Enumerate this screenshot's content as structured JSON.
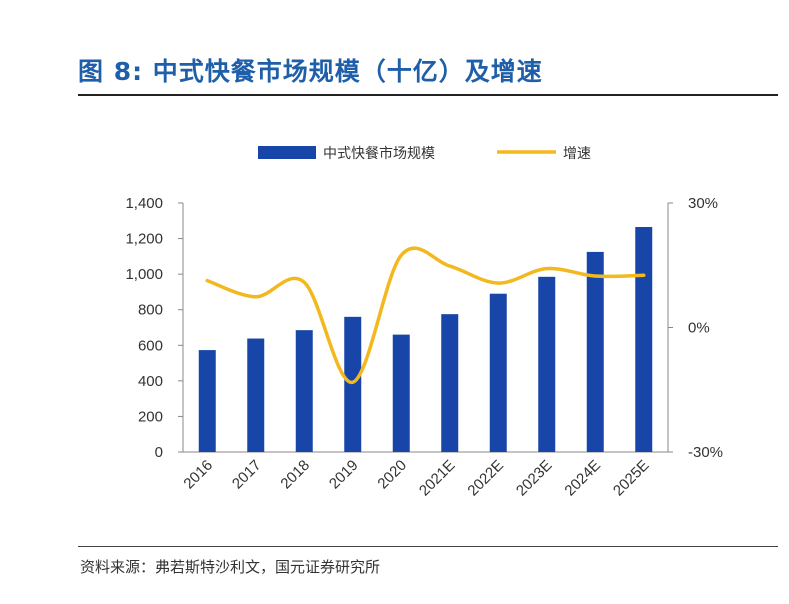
{
  "figure": {
    "title": "图 8: 中式快餐市场规模（十亿）及增速",
    "source": "资料来源：弗若斯特沙利文，国元证券研究所"
  },
  "chart_data": {
    "type": "bar",
    "categories": [
      "2016",
      "2017",
      "2018",
      "2019",
      "2020",
      "2021E",
      "2022E",
      "2023E",
      "2024E",
      "2025E"
    ],
    "series": [
      {
        "name": "中式快餐市场规模",
        "type": "bar",
        "axis": "left",
        "color": "#1846a8",
        "values": [
          573,
          638,
          685,
          760,
          660,
          775,
          890,
          985,
          1125,
          1265
        ]
      },
      {
        "name": "增速",
        "type": "line",
        "axis": "right",
        "color": "#f2b81e",
        "values": [
          11.3,
          7.4,
          10.9,
          -13.2,
          17.4,
          14.8,
          10.7,
          14.2,
          12.4,
          12.6
        ]
      }
    ],
    "left_axis": {
      "ylim": [
        0,
        1400
      ],
      "ticks": [
        "0",
        "200",
        "400",
        "600",
        "800",
        "1,000",
        "1,200",
        "1,400"
      ]
    },
    "right_axis": {
      "ylim": [
        -30,
        30
      ],
      "ticks": [
        "-30%",
        "0%",
        "30%"
      ]
    },
    "legend_position": "top-center"
  }
}
